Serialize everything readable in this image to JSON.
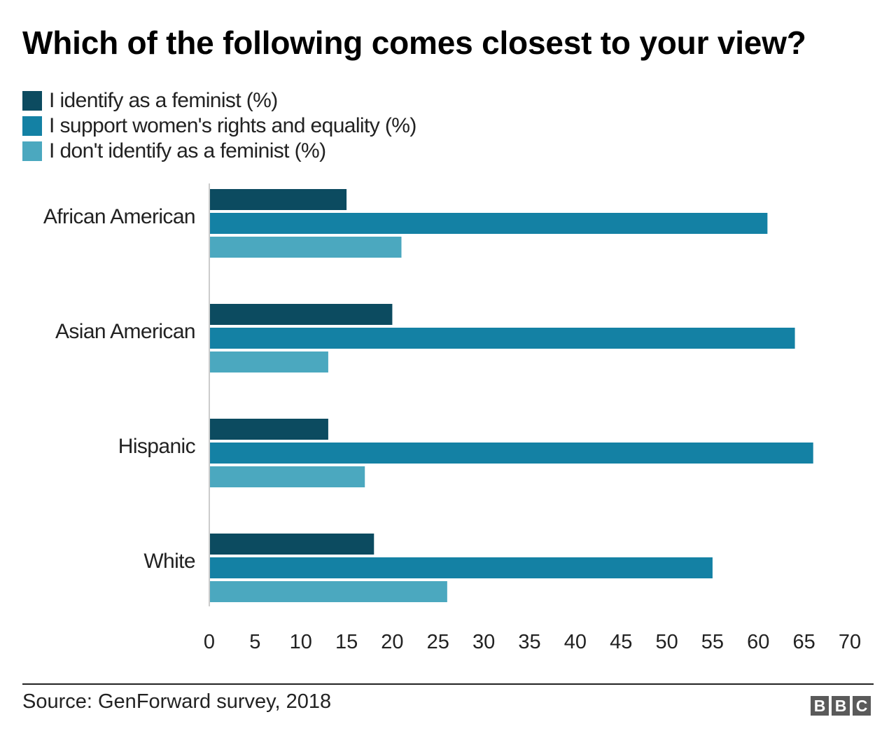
{
  "title": "Which of the following comes closest to your view?",
  "source": "Source: GenForward survey, 2018",
  "logo": [
    "B",
    "B",
    "C"
  ],
  "colors": {
    "series": [
      "#0c4b60",
      "#1481a4",
      "#4ba8bf"
    ],
    "axis": "#cccccc",
    "text": "#222222"
  },
  "chart_data": {
    "type": "bar",
    "orientation": "horizontal",
    "categories": [
      "African American",
      "Asian American",
      "Hispanic",
      "White"
    ],
    "series": [
      {
        "name": "I identify as a feminist (%)",
        "values": [
          15,
          20,
          13,
          18
        ]
      },
      {
        "name": "I support women's rights and equality (%)",
        "values": [
          61,
          64,
          66,
          55
        ]
      },
      {
        "name": "I don't identify as a feminist (%)",
        "values": [
          21,
          13,
          17,
          26
        ]
      }
    ],
    "xlim": [
      0,
      70
    ],
    "xticks": [
      0,
      5,
      10,
      15,
      20,
      25,
      30,
      35,
      40,
      45,
      50,
      55,
      60,
      65,
      70
    ],
    "grid": false,
    "legend": "top-left"
  }
}
